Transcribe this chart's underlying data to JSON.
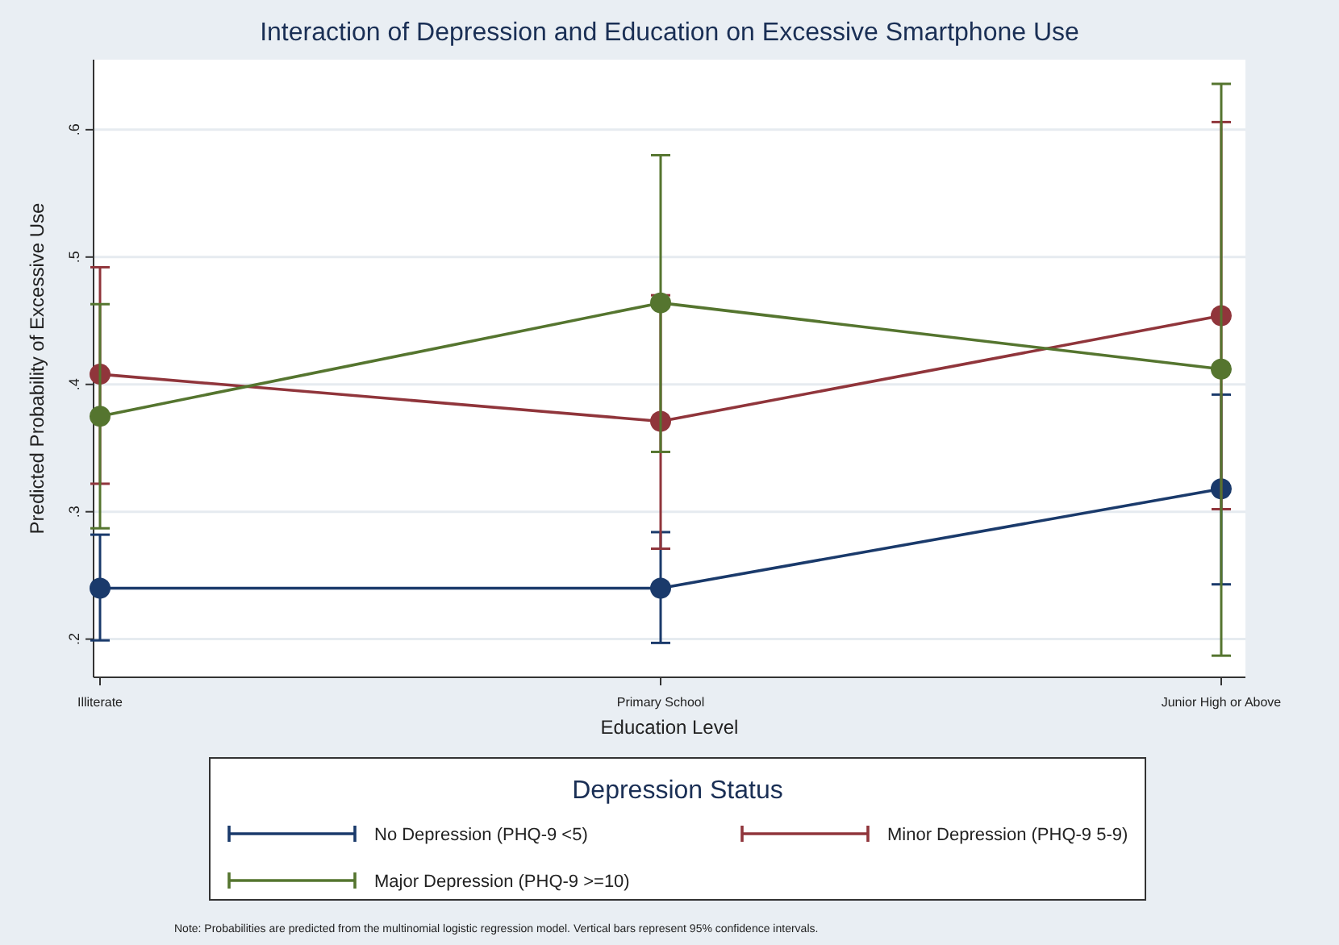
{
  "chart_data": {
    "type": "line",
    "title": "Interaction of Depression and Education on Excessive Smartphone Use",
    "xlabel": "Education Level",
    "ylabel": "Predicted Probability of Excessive Use",
    "legend_title": "Depression Status",
    "categories": [
      "Illiterate",
      "Primary School",
      "Junior High or Above"
    ],
    "series": [
      {
        "name": "No Depression (PHQ-9 <5)",
        "color": "#1a3a6b",
        "values": [
          0.24,
          0.24,
          0.318
        ],
        "errors": [
          [
            0.199,
            0.282
          ],
          [
            0.197,
            0.284
          ],
          [
            0.243,
            0.392
          ]
        ]
      },
      {
        "name": "Minor Depression (PHQ-9 5-9)",
        "color": "#90353b",
        "values": [
          0.408,
          0.371,
          0.454
        ],
        "errors": [
          [
            0.322,
            0.492
          ],
          [
            0.271,
            0.47
          ],
          [
            0.302,
            0.606
          ]
        ]
      },
      {
        "name": "Major Depression (PHQ-9 >=10)",
        "color": "#55752f",
        "values": [
          0.375,
          0.464,
          0.412
        ],
        "errors": [
          [
            0.287,
            0.463
          ],
          [
            0.347,
            0.58
          ],
          [
            0.187,
            0.636
          ]
        ]
      }
    ],
    "ylim": [
      0.17,
      0.655
    ],
    "yticks": [
      {
        "value": 0.2,
        "label": ".2"
      },
      {
        "value": 0.3,
        "label": ".3"
      },
      {
        "value": 0.4,
        "label": ".4"
      },
      {
        "value": 0.5,
        "label": ".5"
      },
      {
        "value": 0.6,
        "label": ".6"
      }
    ],
    "grid": "y",
    "legend": "bottom",
    "marker": "circle",
    "line_style": "solid",
    "annotations": [
      "Note: Probabilities are predicted from the multinomial logistic regression model. Vertical bars represent 95% confidence intervals."
    ]
  }
}
